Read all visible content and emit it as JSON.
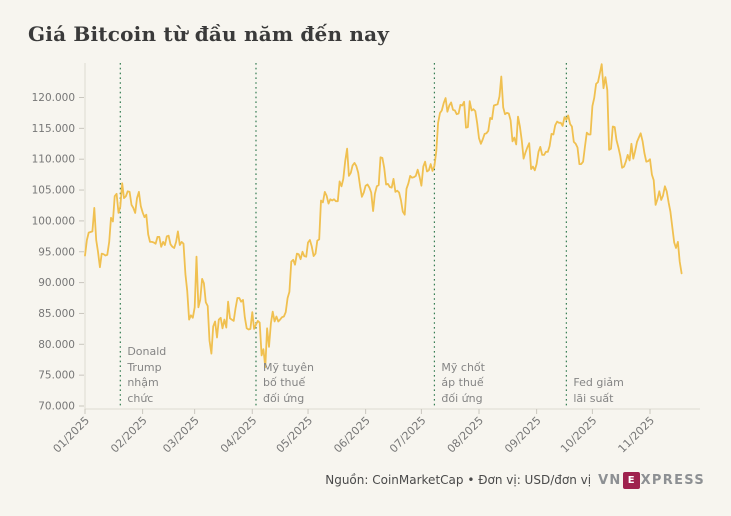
{
  "page": {
    "title": "Giá Bitcoin từ đầu năm đến nay"
  },
  "footer": {
    "source": "Nguồn: CoinMarketCap • Đơn vị: USD/đơn vị",
    "logo_pre": "VN",
    "logo_boxed": "E",
    "logo_post": "XPRESS"
  },
  "colors": {
    "background": "#F7F5EF",
    "price_line": "#F0C050",
    "event_line": "#357D53",
    "axis_line": "#DEDAD1",
    "tick_mark": "#C9C6BE",
    "tick_label": "#777777",
    "annotation_text": "#858585",
    "title_text": "#3A3A3A",
    "footer_text": "#4A4A4A",
    "logo_gray": "#8D9093",
    "logo_red": "#9F224E"
  },
  "chart_data": {
    "type": "line",
    "title": "Giá Bitcoin từ đầu năm đến nay",
    "source_label": "CoinMarketCap",
    "unit_label": "USD/đơn vị",
    "grid": "ticks-only",
    "legend": "none",
    "ylim": [
      70000,
      125600
    ],
    "interval_days": 1,
    "y_ticks": [
      {
        "label": "120.000",
        "value": 120000
      },
      {
        "label": "115.000",
        "value": 115000
      },
      {
        "label": "110.000",
        "value": 110000
      },
      {
        "label": "105.000",
        "value": 105000
      },
      {
        "label": "100.000",
        "value": 100000
      },
      {
        "label": "95.000",
        "value": 95000
      },
      {
        "label": "90.000",
        "value": 90000
      },
      {
        "label": "85.000",
        "value": 85000
      },
      {
        "label": "80.000",
        "value": 80000
      },
      {
        "label": "75.000",
        "value": 75000
      },
      {
        "label": "70.000",
        "value": 70000
      }
    ],
    "x_ticks": [
      {
        "label": "01/2025",
        "day_index": 0
      },
      {
        "label": "02/2025",
        "day_index": 31
      },
      {
        "label": "03/2025",
        "day_index": 59
      },
      {
        "label": "04/2025",
        "day_index": 90
      },
      {
        "label": "05/2025",
        "day_index": 120
      },
      {
        "label": "06/2025",
        "day_index": 151
      },
      {
        "label": "07/2025",
        "day_index": 181
      },
      {
        "label": "08/2025",
        "day_index": 212
      },
      {
        "label": "09/2025",
        "day_index": 243
      },
      {
        "label": "10/2025",
        "day_index": 273
      },
      {
        "label": "11/2025",
        "day_index": 304
      }
    ],
    "events": [
      {
        "day_index": 19,
        "label_lines": [
          "Donald",
          "Trump",
          "nhậm",
          "chức"
        ]
      },
      {
        "day_index": 92,
        "label_lines": [
          "Mỹ tuyên",
          "bố thuế",
          "đối ứng"
        ]
      },
      {
        "day_index": 188,
        "label_lines": [
          "Mỹ chốt",
          "áp thuế",
          "đối ứng"
        ]
      },
      {
        "day_index": 259,
        "label_lines": [
          "Fed giảm",
          "lãi suất"
        ]
      }
    ],
    "values": [
      94400,
      96900,
      98100,
      98200,
      98300,
      102100,
      96900,
      95000,
      92500,
      94700,
      94600,
      94400,
      94500,
      96600,
      100500,
      99900,
      104000,
      104400,
      101300,
      102300,
      106100,
      103700,
      104000,
      104800,
      104700,
      102600,
      102100,
      101300,
      103700,
      104700,
      102400,
      101400,
      100600,
      101000,
      97800,
      96600,
      96600,
      96500,
      96300,
      97400,
      97400,
      95800,
      96600,
      96100,
      97500,
      97600,
      96200,
      95800,
      95600,
      96600,
      98300,
      96100,
      96600,
      96300,
      91400,
      88700,
      84000,
      84700,
      84300,
      86000,
      94200,
      86000,
      87200,
      90600,
      89900,
      86800,
      86200,
      80600,
      78500,
      82900,
      83700,
      81100,
      84000,
      84300,
      82600,
      84000,
      82700,
      86900,
      84200,
      84000,
      83800,
      85800,
      87500,
      87500,
      86900,
      87200,
      84400,
      82600,
      82400,
      82500,
      85200,
      82500,
      83200,
      83800,
      83500,
      78200,
      79200,
      76300,
      82600,
      79600,
      83400,
      85300,
      83700,
      84500,
      83700,
      84000,
      84400,
      84500,
      85200,
      87500,
      88500,
      93400,
      93700,
      92900,
      94700,
      94600,
      93800,
      95000,
      94300,
      94200,
      96500,
      96900,
      95900,
      94300,
      94700,
      96800,
      97000,
      103300,
      103000,
      104700,
      104100,
      102800,
      103500,
      103300,
      103500,
      103200,
      103200,
      106400,
      105600,
      106800,
      109700,
      111700,
      107300,
      107800,
      109000,
      109400,
      108900,
      107800,
      105600,
      103900,
      104600,
      105700,
      105900,
      105400,
      104600,
      101600,
      104400,
      105600,
      105800,
      110300,
      110200,
      108600,
      105900,
      106000,
      105500,
      105400,
      106800,
      104700,
      104900,
      104600,
      103300,
      101500,
      101000,
      105200,
      106100,
      107300,
      107000,
      107100,
      107300,
      108300,
      107200,
      105700,
      108800,
      109600,
      108000,
      108200,
      109200,
      108100,
      108900,
      111300,
      115900,
      117500,
      117900,
      119100,
      119900,
      117700,
      118700,
      119200,
      118000,
      117900,
      117300,
      117400,
      118800,
      118700,
      119300,
      115100,
      115200,
      119400,
      117900,
      118100,
      117800,
      115800,
      113400,
      112500,
      113200,
      114100,
      114200,
      114600,
      116700,
      116500,
      118700,
      118800,
      118900,
      120200,
      123400,
      118400,
      117300,
      117500,
      117400,
      116300,
      112900,
      113500,
      112400,
      116900,
      115300,
      113000,
      110100,
      111100,
      111900,
      112600,
      108400,
      108800,
      108200,
      109200,
      111200,
      112000,
      110700,
      110700,
      111200,
      111200,
      112100,
      114100,
      114000,
      115500,
      116100,
      115900,
      115900,
      115400,
      116800,
      116400,
      117100,
      115700,
      115300,
      112800,
      112500,
      111900,
      109200,
      109200,
      109600,
      112100,
      114300,
      114000,
      114000,
      118600,
      119900,
      122200,
      122500,
      123900,
      125400,
      121500,
      123300,
      121200,
      111500,
      111700,
      115300,
      115200,
      113100,
      111900,
      110500,
      108600,
      108800,
      109600,
      110700,
      109800,
      112500,
      110100,
      111300,
      112800,
      113500,
      114200,
      112900,
      111000,
      109600,
      109700,
      110000,
      107500,
      106600,
      102600,
      103500,
      104800,
      103400,
      104100,
      105600,
      104800,
      103000,
      101500,
      99000,
      96500,
      95600,
      96600,
      93400,
      91500
    ]
  }
}
